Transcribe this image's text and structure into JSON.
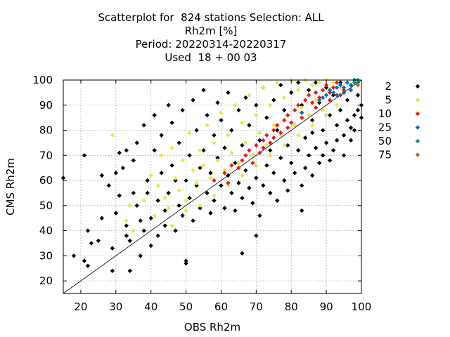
{
  "title_lines": [
    "Scatterplot for  824 stations Selection: ALL",
    "Rh2m [%]",
    "Period: 20220314-20220317",
    "Used  18 + 00 03"
  ],
  "chart_data": {
    "type": "scatter",
    "title": "Scatterplot for  824 stations Selection: ALL",
    "xlabel": "OBS Rh2m",
    "ylabel": "CMS Rh2m",
    "xlim": [
      15,
      100
    ],
    "ylim": [
      15,
      100
    ],
    "x_ticks": [
      20,
      30,
      40,
      50,
      60,
      70,
      80,
      90,
      100
    ],
    "y_ticks": [
      20,
      30,
      40,
      50,
      60,
      70,
      80,
      90,
      100
    ],
    "grid": true,
    "diagonal_line": true,
    "legend_position": "right",
    "series": [
      {
        "name": "2",
        "color": "#000000",
        "points": [
          [
            15,
            61
          ],
          [
            18,
            30
          ],
          [
            21,
            28
          ],
          [
            21,
            70
          ],
          [
            22,
            26
          ],
          [
            22,
            40
          ],
          [
            23,
            35
          ],
          [
            25,
            36
          ],
          [
            26,
            62
          ],
          [
            26,
            45
          ],
          [
            28,
            58
          ],
          [
            29,
            24
          ],
          [
            29,
            33
          ],
          [
            30,
            47
          ],
          [
            30,
            63
          ],
          [
            31,
            71
          ],
          [
            31,
            54
          ],
          [
            32,
            65
          ],
          [
            33,
            72
          ],
          [
            33,
            42
          ],
          [
            33,
            38
          ],
          [
            34,
            24
          ],
          [
            34,
            36
          ],
          [
            35,
            55
          ],
          [
            35,
            68
          ],
          [
            36,
            50
          ],
          [
            36,
            75
          ],
          [
            37,
            44
          ],
          [
            37,
            30
          ],
          [
            38,
            82
          ],
          [
            38,
            40
          ],
          [
            39,
            55
          ],
          [
            39,
            60
          ],
          [
            40,
            45
          ],
          [
            40,
            34
          ],
          [
            41,
            72
          ],
          [
            41,
            86
          ],
          [
            42,
            52
          ],
          [
            42,
            38
          ],
          [
            43,
            63
          ],
          [
            43,
            78
          ],
          [
            44,
            48
          ],
          [
            44,
            42
          ],
          [
            45,
            90
          ],
          [
            45,
            55
          ],
          [
            46,
            83
          ],
          [
            46,
            66
          ],
          [
            47,
            40
          ],
          [
            47,
            60
          ],
          [
            48,
            75
          ],
          [
            48,
            50
          ],
          [
            49,
            88
          ],
          [
            49,
            46
          ],
          [
            50,
            27
          ],
          [
            50,
            28
          ],
          [
            50,
            60
          ],
          [
            51,
            70
          ],
          [
            51,
            53
          ],
          [
            52,
            92
          ],
          [
            52,
            44
          ],
          [
            53,
            80
          ],
          [
            53,
            58
          ],
          [
            54,
            65
          ],
          [
            54,
            49
          ],
          [
            55,
            96
          ],
          [
            55,
            72
          ],
          [
            56,
            55
          ],
          [
            56,
            86
          ],
          [
            57,
            47
          ],
          [
            57,
            63
          ],
          [
            58,
            78
          ],
          [
            58,
            52
          ],
          [
            59,
            91
          ],
          [
            59,
            69
          ],
          [
            60,
            58
          ],
          [
            60,
            84
          ],
          [
            61,
            49
          ],
          [
            61,
            73
          ],
          [
            62,
            95
          ],
          [
            62,
            62
          ],
          [
            63,
            55
          ],
          [
            63,
            80
          ],
          [
            64,
            48
          ],
          [
            64,
            67
          ],
          [
            65,
            88
          ],
          [
            65,
            59
          ],
          [
            66,
            74
          ],
          [
            66,
            53
          ],
          [
            67,
            93
          ],
          [
            67,
            64
          ],
          [
            68,
            57
          ],
          [
            68,
            82
          ],
          [
            69,
            51
          ],
          [
            69,
            70
          ],
          [
            70,
            90
          ],
          [
            70,
            61
          ],
          [
            71,
            46
          ],
          [
            71,
            76
          ],
          [
            72,
            97
          ],
          [
            72,
            58
          ],
          [
            73,
            66
          ],
          [
            73,
            85
          ],
          [
            74,
            55
          ],
          [
            74,
            72
          ],
          [
            75,
            92
          ],
          [
            75,
            63
          ],
          [
            76,
            52
          ],
          [
            76,
            80
          ],
          [
            77,
            69
          ],
          [
            77,
            98
          ],
          [
            78,
            60
          ],
          [
            78,
            88
          ],
          [
            79,
            74
          ],
          [
            79,
            56
          ],
          [
            80,
            95
          ],
          [
            80,
            67
          ],
          [
            81,
            82
          ],
          [
            81,
            63
          ],
          [
            82,
            99
          ],
          [
            82,
            72
          ],
          [
            83,
            58
          ],
          [
            83,
            90
          ],
          [
            84,
            77
          ],
          [
            84,
            65
          ],
          [
            85,
            96
          ],
          [
            85,
            70
          ],
          [
            86,
            84
          ],
          [
            86,
            62
          ],
          [
            87,
            73
          ],
          [
            87,
            99
          ],
          [
            88,
            67
          ],
          [
            88,
            91
          ],
          [
            89,
            80
          ],
          [
            89,
            70
          ],
          [
            90,
            97
          ],
          [
            90,
            75
          ],
          [
            91,
            86
          ],
          [
            91,
            68
          ],
          [
            92,
            94
          ],
          [
            92,
            72
          ],
          [
            93,
            82
          ],
          [
            93,
            76
          ],
          [
            94,
            99
          ],
          [
            94,
            88
          ],
          [
            95,
            78
          ],
          [
            95,
            70
          ],
          [
            96,
            92
          ],
          [
            96,
            84
          ],
          [
            97,
            76
          ],
          [
            97,
            98
          ],
          [
            98,
            86
          ],
          [
            98,
            80
          ],
          [
            99,
            94
          ],
          [
            99,
            88
          ],
          [
            100,
            90
          ],
          [
            100,
            85
          ],
          [
            66,
            31
          ],
          [
            70,
            38
          ],
          [
            83,
            48
          ],
          [
            97,
            81
          ],
          [
            86,
            79
          ],
          [
            90,
            86
          ]
        ]
      },
      {
        "name": "5",
        "color": "#f0e442",
        "points": [
          [
            29,
            78
          ],
          [
            33,
            44
          ],
          [
            34,
            50
          ],
          [
            35,
            40
          ],
          [
            38,
            52
          ],
          [
            40,
            62
          ],
          [
            41,
            46
          ],
          [
            42,
            58
          ],
          [
            43,
            70
          ],
          [
            44,
            53
          ],
          [
            45,
            49
          ],
          [
            46,
            73
          ],
          [
            47,
            61
          ],
          [
            48,
            56
          ],
          [
            49,
            68
          ],
          [
            50,
            52
          ],
          [
            51,
            79
          ],
          [
            52,
            64
          ],
          [
            53,
            59
          ],
          [
            54,
            72
          ],
          [
            55,
            66
          ],
          [
            56,
            82
          ],
          [
            57,
            61
          ],
          [
            58,
            75
          ],
          [
            59,
            68
          ],
          [
            60,
            87
          ],
          [
            61,
            64
          ],
          [
            62,
            78
          ],
          [
            63,
            71
          ],
          [
            64,
            90
          ],
          [
            65,
            67
          ],
          [
            66,
            83
          ],
          [
            67,
            75
          ],
          [
            68,
            94
          ],
          [
            69,
            70
          ],
          [
            70,
            86
          ],
          [
            71,
            79
          ],
          [
            72,
            97
          ],
          [
            73,
            74
          ],
          [
            74,
            90
          ],
          [
            75,
            82
          ],
          [
            76,
            99
          ],
          [
            77,
            78
          ],
          [
            78,
            93
          ],
          [
            79,
            86
          ],
          [
            80,
            100
          ],
          [
            81,
            82
          ],
          [
            82,
            96
          ],
          [
            83,
            89
          ],
          [
            84,
            100
          ],
          [
            85,
            86
          ],
          [
            86,
            98
          ],
          [
            87,
            92
          ],
          [
            88,
            99
          ],
          [
            89,
            88
          ],
          [
            90,
            100
          ],
          [
            91,
            95
          ],
          [
            92,
            99
          ],
          [
            93,
            90
          ],
          [
            94,
            97
          ],
          [
            62,
            58
          ],
          [
            66,
            62
          ],
          [
            70,
            66
          ],
          [
            74,
            70
          ],
          [
            78,
            74
          ],
          [
            82,
            78
          ],
          [
            86,
            82
          ],
          [
            90,
            86
          ],
          [
            58,
            54
          ],
          [
            54,
            50
          ],
          [
            50,
            48
          ],
          [
            46,
            42
          ]
        ]
      },
      {
        "name": "10",
        "color": "#e51e10",
        "points": [
          [
            58,
            60
          ],
          [
            61,
            63
          ],
          [
            63,
            66
          ],
          [
            65,
            65
          ],
          [
            67,
            70
          ],
          [
            68,
            72
          ],
          [
            70,
            74
          ],
          [
            71,
            71
          ],
          [
            72,
            76
          ],
          [
            73,
            78
          ],
          [
            74,
            75
          ],
          [
            75,
            80
          ],
          [
            76,
            82
          ],
          [
            77,
            79
          ],
          [
            78,
            84
          ],
          [
            79,
            86
          ],
          [
            80,
            83
          ],
          [
            81,
            88
          ],
          [
            82,
            90
          ],
          [
            83,
            87
          ],
          [
            84,
            92
          ],
          [
            85,
            94
          ],
          [
            86,
            91
          ],
          [
            87,
            95
          ],
          [
            88,
            93
          ],
          [
            89,
            96
          ],
          [
            90,
            98
          ],
          [
            91,
            95
          ],
          [
            92,
            97
          ],
          [
            93,
            99
          ],
          [
            94,
            94
          ],
          [
            95,
            96
          ],
          [
            62,
            59
          ],
          [
            66,
            68
          ],
          [
            69,
            67
          ],
          [
            72,
            73
          ],
          [
            75,
            77
          ],
          [
            79,
            81
          ],
          [
            83,
            85
          ],
          [
            87,
            89
          ],
          [
            91,
            92
          ]
        ]
      },
      {
        "name": "25",
        "color": "#0072b2",
        "points": [
          [
            83,
            87
          ],
          [
            88,
            92
          ],
          [
            89,
            93
          ],
          [
            90,
            94
          ],
          [
            91,
            96
          ],
          [
            92,
            95
          ],
          [
            93,
            97
          ],
          [
            94,
            98
          ],
          [
            95,
            97
          ],
          [
            96,
            99
          ],
          [
            97,
            98
          ],
          [
            98,
            100
          ],
          [
            99,
            99
          ],
          [
            95,
            95
          ],
          [
            93,
            94
          ],
          [
            97,
            96
          ]
        ]
      },
      {
        "name": "50",
        "color": "#009e73",
        "points": [
          [
            98,
            99
          ],
          [
            99,
            100
          ]
        ]
      },
      {
        "name": "75",
        "color": "#d55e00",
        "points": [
          [
            99,
            98
          ]
        ]
      }
    ]
  }
}
